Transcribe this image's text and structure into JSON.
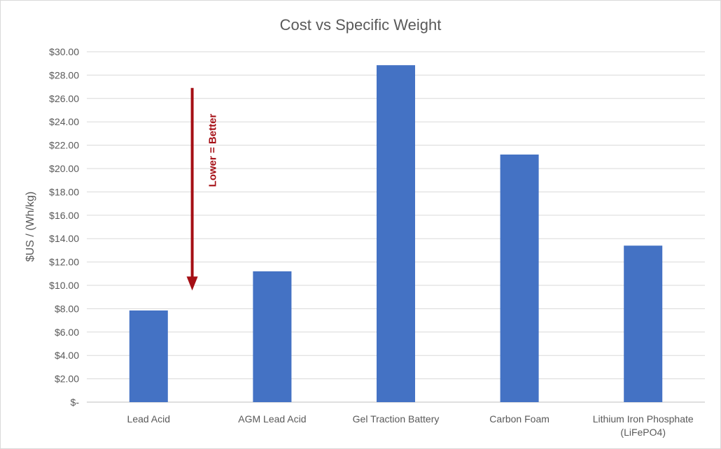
{
  "chart_data": {
    "type": "bar",
    "title": "Cost vs Specific Weight",
    "ylabel": "$US / (Wh/kg)",
    "xlabel": "",
    "ylim": [
      0,
      30
    ],
    "yticks": [
      0,
      2,
      4,
      6,
      8,
      10,
      12,
      14,
      16,
      18,
      20,
      22,
      24,
      26,
      28,
      30
    ],
    "ytick_labels": [
      "$-",
      "$2.00",
      "$4.00",
      "$6.00",
      "$8.00",
      "$10.00",
      "$12.00",
      "$14.00",
      "$16.00",
      "$18.00",
      "$20.00",
      "$22.00",
      "$24.00",
      "$26.00",
      "$28.00",
      "$30.00"
    ],
    "categories": [
      [
        "Lead Acid"
      ],
      [
        "AGM Lead Acid"
      ],
      [
        "Gel Traction Battery"
      ],
      [
        "Carbon Foam"
      ],
      [
        "Lithium Iron Phosphate",
        "(LiFePO4)"
      ]
    ],
    "values": [
      7.85,
      11.2,
      28.85,
      21.2,
      13.4
    ],
    "bar_color": "#4472C4",
    "grid": true,
    "annotation": {
      "text": "Lower = Better",
      "color": "#A50F15",
      "arrow_from": 26.9,
      "arrow_to": 9.8,
      "near_category_index": 1
    }
  }
}
